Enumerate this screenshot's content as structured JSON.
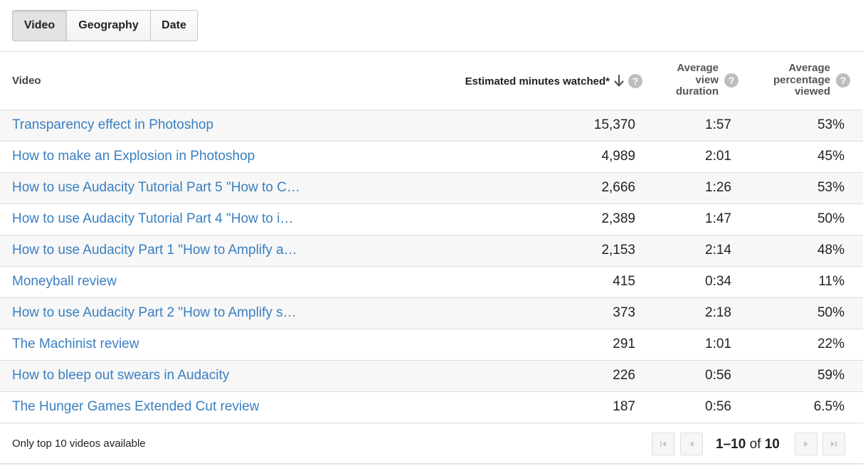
{
  "tabs": [
    {
      "label": "Video",
      "active": true
    },
    {
      "label": "Geography",
      "active": false
    },
    {
      "label": "Date",
      "active": false
    }
  ],
  "table": {
    "headers": {
      "video": "Video",
      "estimated_minutes": "Estimated minutes watched*",
      "avg_view_duration": [
        "Average",
        "view",
        "duration"
      ],
      "avg_percentage_viewed": [
        "Average",
        "percentage",
        "viewed"
      ],
      "help_glyph": "?"
    },
    "rows": [
      {
        "title": "Transparency effect in Photoshop",
        "minutes": "15,370",
        "duration": "1:57",
        "percent": "53%"
      },
      {
        "title": "How to make an Explosion in Photoshop",
        "minutes": "4,989",
        "duration": "2:01",
        "percent": "45%"
      },
      {
        "title": "How to use Audacity Tutorial Part 5 \"How to C…",
        "minutes": "2,666",
        "duration": "1:26",
        "percent": "53%"
      },
      {
        "title": "How to use Audacity Tutorial Part 4 \"How to i…",
        "minutes": "2,389",
        "duration": "1:47",
        "percent": "50%"
      },
      {
        "title": "How to use Audacity Part 1 \"How to Amplify a…",
        "minutes": "2,153",
        "duration": "2:14",
        "percent": "48%"
      },
      {
        "title": "Moneyball review",
        "minutes": "415",
        "duration": "0:34",
        "percent": "11%"
      },
      {
        "title": "How to use Audacity Part 2 \"How to Amplify s…",
        "minutes": "373",
        "duration": "2:18",
        "percent": "50%"
      },
      {
        "title": "The Machinist review",
        "minutes": "291",
        "duration": "1:01",
        "percent": "22%"
      },
      {
        "title": "How to bleep out swears in Audacity",
        "minutes": "226",
        "duration": "0:56",
        "percent": "59%"
      },
      {
        "title": "The Hunger Games Extended Cut review",
        "minutes": "187",
        "duration": "0:56",
        "percent": "6.5%"
      }
    ]
  },
  "footer": {
    "note": "Only top 10 videos available",
    "range": "1–10",
    "of_label": "of",
    "total": "10"
  },
  "icons": {
    "help": "help-icon",
    "sort": "arrow-down-icon",
    "first": "first-page-icon",
    "prev": "previous-page-icon",
    "next": "next-page-icon",
    "last": "last-page-icon"
  },
  "colors": {
    "link": "#3a7fc0",
    "stripe": "#f7f7f7",
    "border": "#dcdcdc",
    "help_icon": "#bdbdbd"
  }
}
